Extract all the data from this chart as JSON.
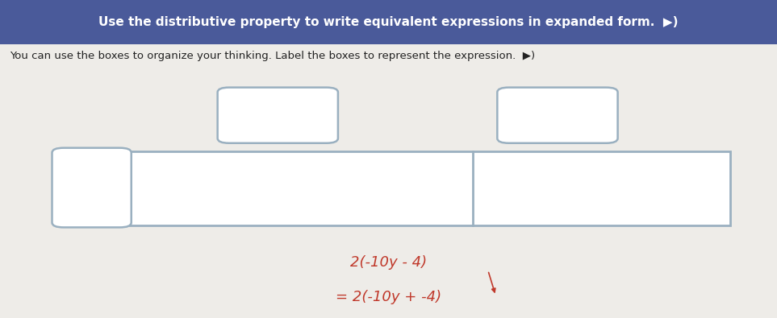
{
  "header_text": "Use the distributive property to write equivalent expressions in expanded form.",
  "header_bg_color": "#4a5a9a",
  "header_text_color": "#ffffff",
  "subtext": "You can use the boxes to organize your thinking. Label the boxes to represent the expression.",
  "subtext_color": "#222222",
  "bg_color": "#eeece8",
  "box_border_color": "#9ab0c0",
  "box_fill_color": "#ffffff",
  "expr_line1": "2(-10y - 4)",
  "expr_line2": "= 2(-10y + -4)",
  "expr_color": "#c0392b"
}
